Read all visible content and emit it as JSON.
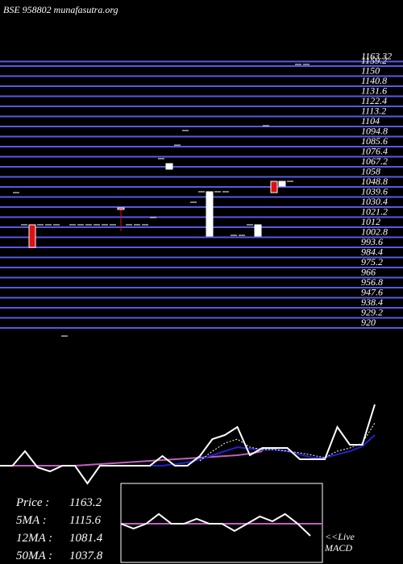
{
  "chart_data": {
    "type": "candlestick",
    "title": "BSE 958802 munafasutra.org",
    "ylim": [
      920,
      1163.32
    ],
    "yticks": [
      1163.32,
      1159.2,
      1150,
      1140.8,
      1131.6,
      1122.4,
      1113.2,
      1104,
      1094.8,
      1085.6,
      1076.4,
      1067.2,
      1058,
      1048.8,
      1039.6,
      1030.4,
      1021.2,
      1012,
      1002.8,
      993.6,
      984.4,
      975.2,
      966,
      956.8,
      947.6,
      938.4,
      929.2,
      920
    ],
    "grid_color": "#5858e8",
    "up_color": "#ffffff",
    "down_color": "#dd1111",
    "candles": [
      {
        "o": 1043.6,
        "h": 1043.6,
        "l": 1043.6,
        "c": 1043.6
      },
      {
        "o": 1014.2,
        "h": 1014.2,
        "l": 1014.2,
        "c": 1014.2
      },
      {
        "o": 1014.2,
        "h": 1014.2,
        "l": 993.6,
        "c": 993.6
      },
      {
        "o": 1014.2,
        "h": 1014.2,
        "l": 1014.2,
        "c": 1014.2
      },
      {
        "o": 1014.2,
        "h": 1014.2,
        "l": 1014.2,
        "c": 1014.2
      },
      {
        "o": 1014.2,
        "h": 1014.2,
        "l": 1014.2,
        "c": 1014.2
      },
      {
        "o": 912.6,
        "h": 912.6,
        "l": 912.6,
        "c": 912.6
      },
      {
        "o": 1014.2,
        "h": 1014.2,
        "l": 1014.2,
        "c": 1014.2
      },
      {
        "o": 1014.2,
        "h": 1014.2,
        "l": 1014.2,
        "c": 1014.2
      },
      {
        "o": 1014.2,
        "h": 1014.2,
        "l": 1014.2,
        "c": 1014.2
      },
      {
        "o": 1014.2,
        "h": 1014.2,
        "l": 1014.2,
        "c": 1014.2
      },
      {
        "o": 1014.2,
        "h": 1014.2,
        "l": 1014.2,
        "c": 1014.2
      },
      {
        "o": 1014.2,
        "h": 1014.2,
        "l": 1014.2,
        "c": 1014.2
      },
      {
        "o": 1029.7,
        "h": 1029.7,
        "l": 1008.3,
        "c": 1028.2
      },
      {
        "o": 1014.2,
        "h": 1014.2,
        "l": 1014.2,
        "c": 1014.2
      },
      {
        "o": 1014.2,
        "h": 1014.2,
        "l": 1014.2,
        "c": 1014.2
      },
      {
        "o": 1014.2,
        "h": 1014.2,
        "l": 1014.2,
        "c": 1014.2
      },
      {
        "o": 1020.8,
        "h": 1020.8,
        "l": 1020.8,
        "c": 1020.8
      },
      {
        "o": 1074.6,
        "h": 1074.6,
        "l": 1074.6,
        "c": 1074.6
      },
      {
        "o": 1065,
        "h": 1070.1,
        "l": 1065,
        "c": 1070.1
      },
      {
        "o": 1087,
        "h": 1087,
        "l": 1087,
        "c": 1087
      },
      {
        "o": 1100.3,
        "h": 1100.3,
        "l": 1100.3,
        "c": 1100.3
      },
      {
        "o": 1034.8,
        "h": 1034.8,
        "l": 1034.8,
        "c": 1034.8
      },
      {
        "o": 1044.4,
        "h": 1044.4,
        "l": 1044.4,
        "c": 1044.4
      },
      {
        "o": 1003.9,
        "h": 1044.4,
        "l": 1003.9,
        "c": 1044.4
      },
      {
        "o": 1044.4,
        "h": 1044.4,
        "l": 1044.4,
        "c": 1044.4
      },
      {
        "o": 1044.4,
        "h": 1044.4,
        "l": 1044.4,
        "c": 1044.4
      },
      {
        "o": 1004.6,
        "h": 1004.6,
        "l": 1004.6,
        "c": 1004.6
      },
      {
        "o": 1004.6,
        "h": 1004.6,
        "l": 1004.6,
        "c": 1004.6
      },
      {
        "o": 1014.2,
        "h": 1014.2,
        "l": 1014.2,
        "c": 1014.2
      },
      {
        "o": 1003.9,
        "h": 1014.2,
        "l": 1003.9,
        "c": 1014.2
      },
      {
        "o": 1104.7,
        "h": 1104.7,
        "l": 1104.7,
        "c": 1104.7
      },
      {
        "o": 1053.9,
        "h": 1053.9,
        "l": 1043.6,
        "c": 1043.6
      },
      {
        "o": 1049.5,
        "h": 1053.9,
        "l": 1049.5,
        "c": 1053.9
      },
      {
        "o": 1053.9,
        "h": 1053.9,
        "l": 1053.9,
        "c": 1053.9
      },
      {
        "o": 1160.7,
        "h": 1160.7,
        "l": 1160.7,
        "c": 1160.7
      },
      {
        "o": 1160.7,
        "h": 1160.7,
        "l": 1160.7,
        "c": 1160.7
      }
    ],
    "lower": {
      "ylim": [
        0,
        120
      ],
      "series": [
        {
          "name": "50MA",
          "color": "#c060c0",
          "values": [
            42,
            42,
            42,
            42,
            42,
            42,
            42,
            43,
            44,
            45,
            46,
            47,
            48,
            49,
            50,
            51,
            52,
            53,
            54,
            55,
            57,
            60,
            null,
            null,
            null,
            null,
            null,
            null,
            null,
            null,
            null
          ]
        },
        {
          "name": "12MA",
          "color": "#2222cc",
          "values": [
            null,
            null,
            null,
            null,
            null,
            null,
            null,
            null,
            null,
            null,
            null,
            null,
            42,
            42,
            44,
            46,
            50,
            55,
            60,
            65,
            63,
            62,
            62,
            60,
            56,
            52,
            52,
            56,
            60,
            66,
            80
          ]
        },
        {
          "name": "5MA",
          "color": "#ffffff",
          "dashed": true,
          "values": [
            null,
            null,
            null,
            null,
            null,
            null,
            null,
            null,
            null,
            null,
            null,
            null,
            null,
            null,
            null,
            null,
            48,
            60,
            70,
            75,
            65,
            62,
            62,
            60,
            58,
            55,
            52,
            60,
            64,
            70,
            95
          ]
        },
        {
          "name": "Price",
          "color": "#ffffff",
          "values": [
            42,
            42,
            60,
            40,
            35,
            42,
            42,
            20,
            42,
            42,
            42,
            42,
            42,
            54,
            42,
            42,
            54,
            75,
            80,
            90,
            55,
            64,
            64,
            64,
            50,
            50,
            50,
            90,
            68,
            68,
            118
          ]
        }
      ]
    },
    "stats": [
      {
        "label": "Price   :",
        "value": 1163.2
      },
      {
        "label": "5MA   :",
        "value": 1115.6
      },
      {
        "label": "12MA :",
        "value": 1081.4
      },
      {
        "label": "50MA :",
        "value": 1037.8
      }
    ],
    "macd": {
      "ylim": [
        -20,
        20
      ],
      "signal": 0,
      "values": [
        0,
        -4,
        0,
        8,
        0,
        0,
        4,
        0,
        0,
        -6,
        0,
        6,
        2,
        8,
        0,
        -10
      ],
      "label1": "<<Live",
      "label2": "MACD"
    }
  }
}
